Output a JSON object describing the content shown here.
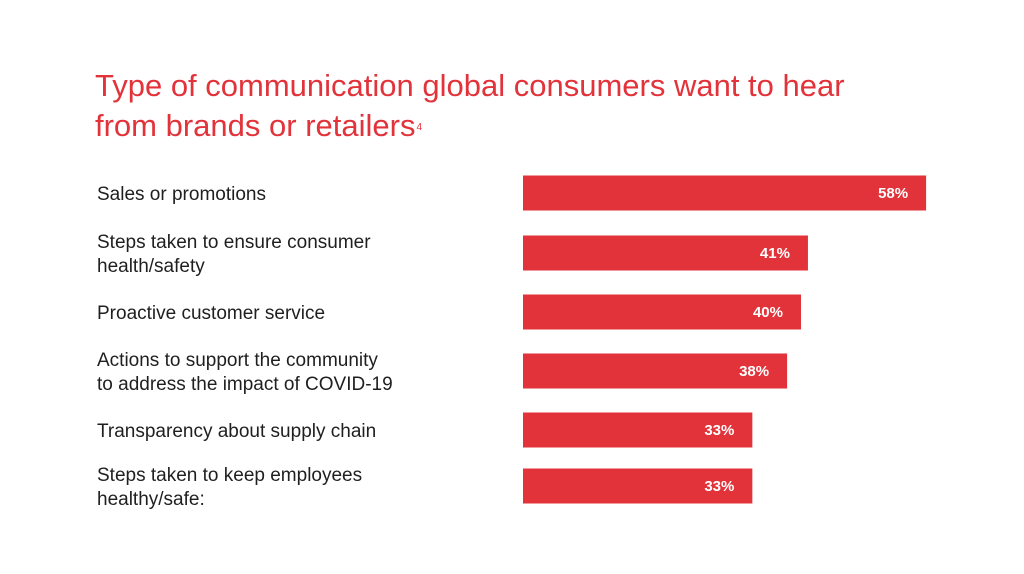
{
  "chart_data": {
    "type": "bar",
    "orientation": "horizontal",
    "title": "Type of communication global consumers want to hear from brands or retailers",
    "title_lines": [
      "Type of communication global consumers want to hear",
      "from brands or retailers"
    ],
    "title_footnote": "4",
    "categories": [
      "Sales or promotions",
      "Steps taken to ensure consumer health/safety",
      "Proactive customer service",
      "Actions to support the community to address the impact of COVID-19",
      "Transparency about supply chain",
      "Steps taken to keep employees healthy/safe:"
    ],
    "category_lines": [
      [
        "Sales or promotions"
      ],
      [
        "Steps taken to ensure consumer",
        "health/safety"
      ],
      [
        "Proactive customer service"
      ],
      [
        "Actions to support the community",
        "to address the impact of COVID-19"
      ],
      [
        "Transparency about supply chain"
      ],
      [
        "Steps taken to keep employees",
        "healthy/safe:"
      ]
    ],
    "values": [
      58,
      41,
      40,
      38,
      33,
      33
    ],
    "value_labels": [
      "58%",
      "41%",
      "40%",
      "38%",
      "33%",
      "33%"
    ],
    "unit": "%",
    "xlim": [
      0,
      100
    ],
    "xlabel": "",
    "ylabel": "",
    "grid": false,
    "legend": "none",
    "bar_color": "#e2333b",
    "title_color": "#e2333b",
    "label_color": "#1f1f1f",
    "value_label_color": "#ffffff"
  }
}
